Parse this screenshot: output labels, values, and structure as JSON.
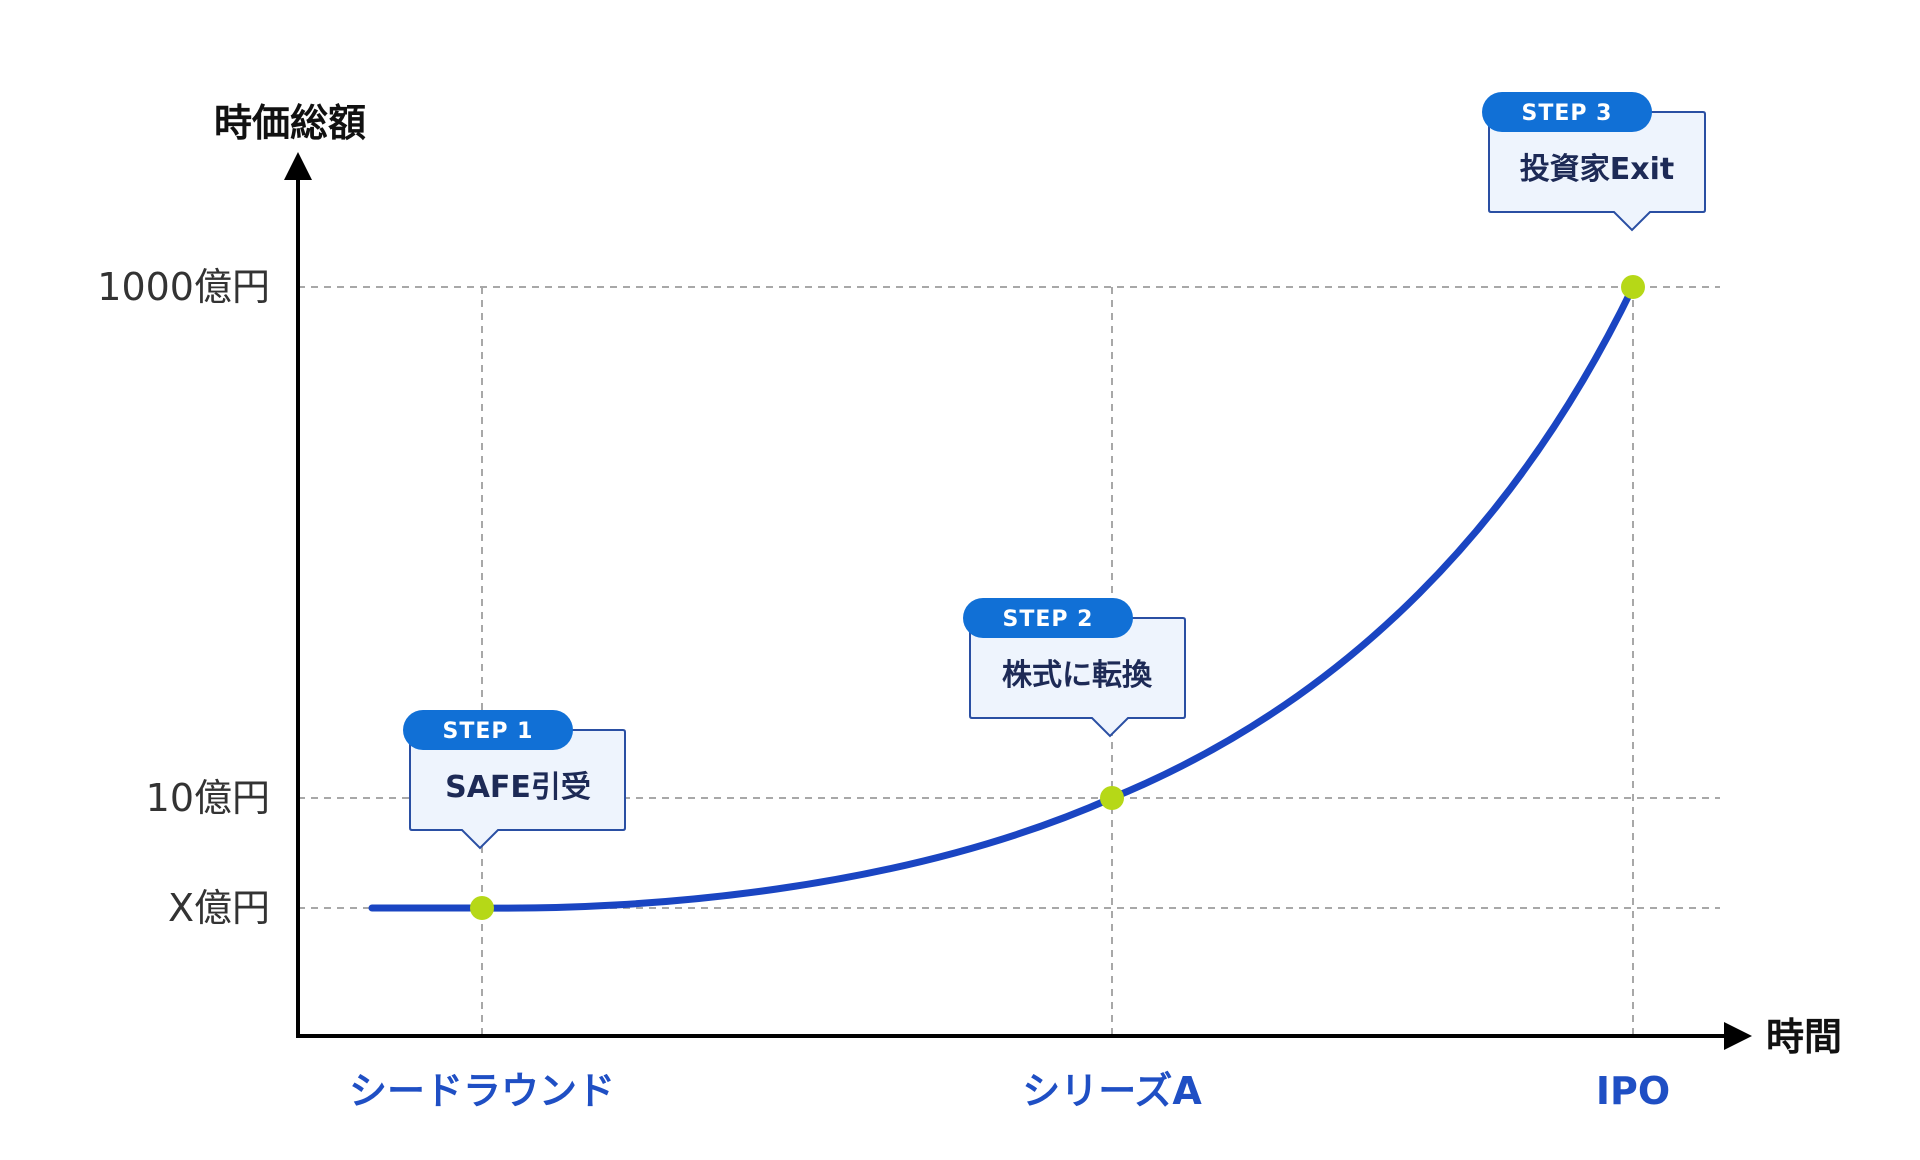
{
  "chart_data": {
    "type": "line",
    "ylabel": "時価総額",
    "xlabel": "時間",
    "y_ticks": [
      "1000億円",
      "10億円",
      "X億円"
    ],
    "categories": [
      "シードラウンド",
      "シリーズA",
      "IPO"
    ],
    "points": [
      {
        "category": "シードラウンド",
        "value": "X億円"
      },
      {
        "category": "シリーズA",
        "value": "10億円"
      },
      {
        "category": "IPO",
        "value": "1000億円"
      }
    ],
    "steps": [
      {
        "badge": "STEP 1",
        "label": "SAFE引受"
      },
      {
        "badge": "STEP 2",
        "label": "株式に転換"
      },
      {
        "badge": "STEP 3",
        "label": "投資家Exit"
      }
    ],
    "grid": true,
    "colors": {
      "curve": "#1a45c2",
      "point": "#b6d817",
      "badge": "#1170d6",
      "callout_fill": "#eef4fd",
      "callout_border": "#2a4fa3",
      "category_text": "#1f4fc4",
      "grid": "#a8a8a8",
      "axis": "#000000"
    }
  }
}
